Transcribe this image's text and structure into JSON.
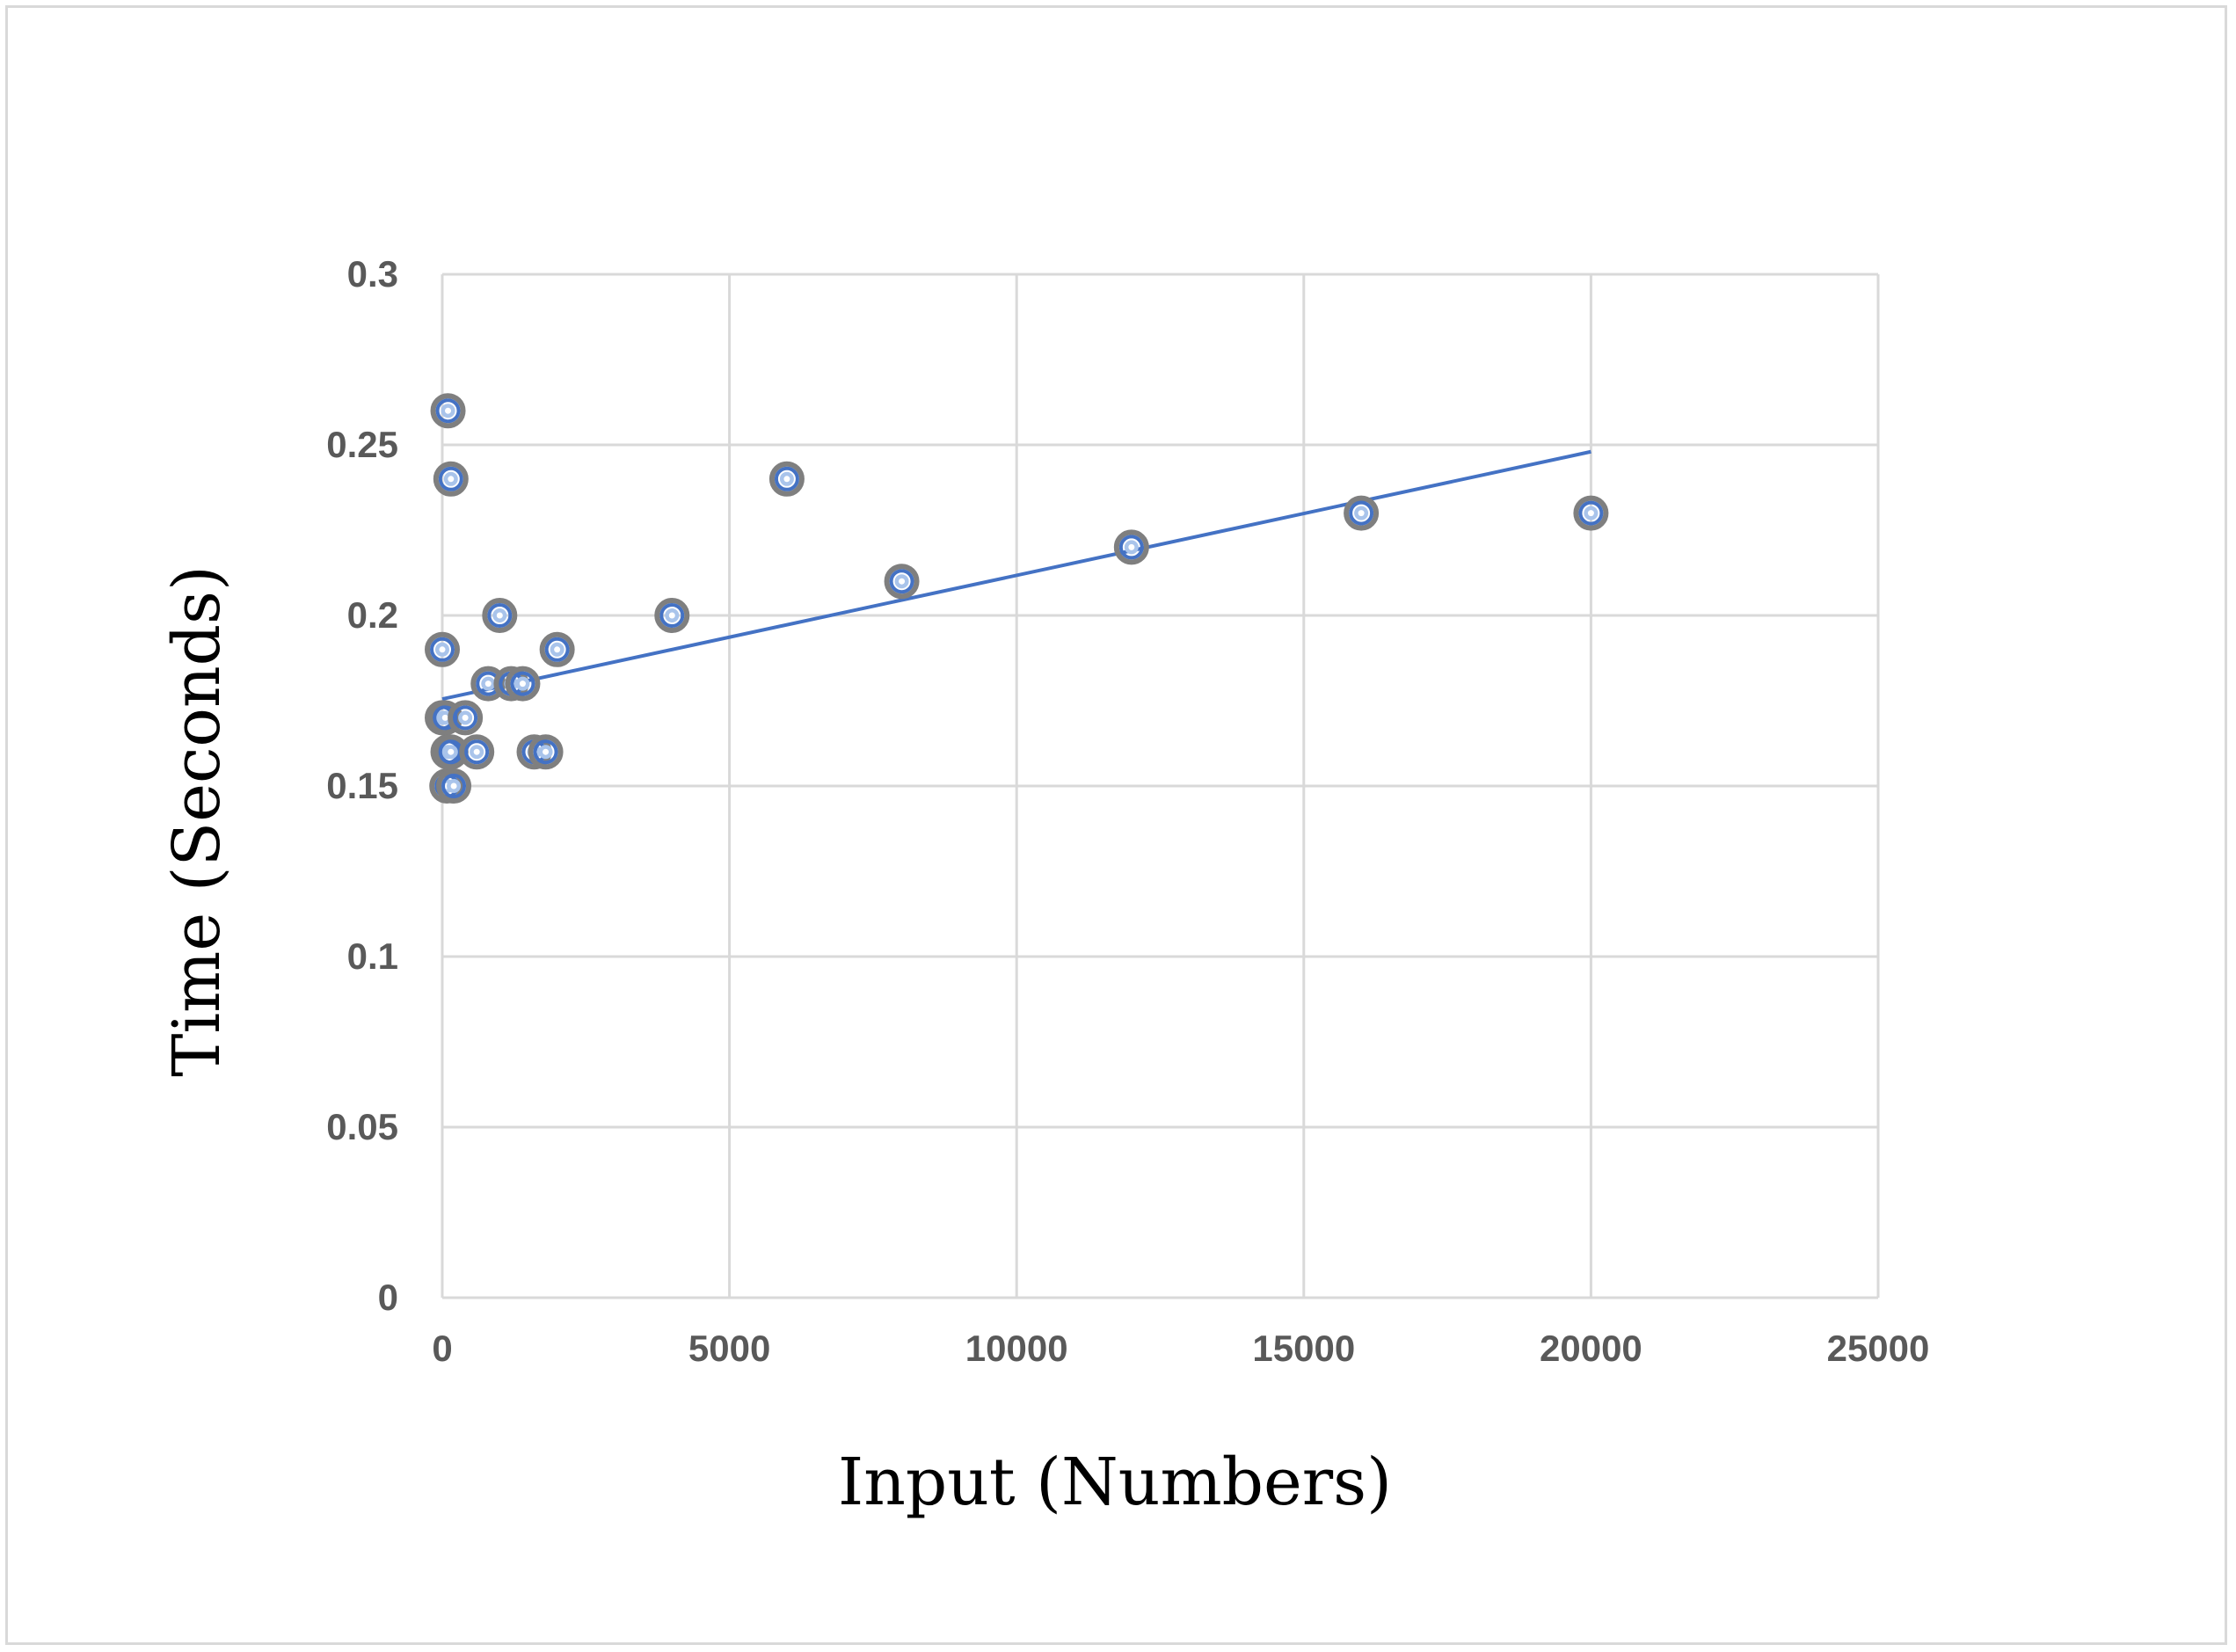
{
  "chart_data": {
    "type": "scatter",
    "title": "",
    "xlabel": "Input (Numbers)",
    "ylabel": "Time (Seconds)",
    "xlim": [
      0,
      25000
    ],
    "ylim": [
      0,
      0.3
    ],
    "x_ticks": [
      "0",
      "5000",
      "10000",
      "15000",
      "20000",
      "25000"
    ],
    "y_ticks": [
      "0",
      "0.05",
      "0.1",
      "0.15",
      "0.2",
      "0.25",
      "0.3"
    ],
    "grid": true,
    "legend": "none",
    "series": [
      {
        "points": [
          {
            "x": 0,
            "y": 0.19
          },
          {
            "x": 0,
            "y": 0.17
          },
          {
            "x": 50,
            "y": 0.17
          },
          {
            "x": 80,
            "y": 0.15
          },
          {
            "x": 100,
            "y": 0.26
          },
          {
            "x": 100,
            "y": 0.16
          },
          {
            "x": 150,
            "y": 0.16
          },
          {
            "x": 150,
            "y": 0.24
          },
          {
            "x": 200,
            "y": 0.15
          },
          {
            "x": 400,
            "y": 0.17
          },
          {
            "x": 600,
            "y": 0.16
          },
          {
            "x": 800,
            "y": 0.18
          },
          {
            "x": 1000,
            "y": 0.2
          },
          {
            "x": 1200,
            "y": 0.18
          },
          {
            "x": 1400,
            "y": 0.18
          },
          {
            "x": 1600,
            "y": 0.16
          },
          {
            "x": 1800,
            "y": 0.16
          },
          {
            "x": 2000,
            "y": 0.19
          },
          {
            "x": 4000,
            "y": 0.2
          },
          {
            "x": 6000,
            "y": 0.24
          },
          {
            "x": 8000,
            "y": 0.21
          },
          {
            "x": 12000,
            "y": 0.22
          },
          {
            "x": 16000,
            "y": 0.23
          },
          {
            "x": 20000,
            "y": 0.23
          }
        ],
        "marker_fill": "#a9c4eb",
        "marker_edge": "#4472c4",
        "marker_outline": "#7f7f7f"
      }
    ],
    "trendline": {
      "type": "linear",
      "start": {
        "x": 0,
        "y": 0.1755
      },
      "end": {
        "x": 20000,
        "y": 0.248
      },
      "color": "#4472c4"
    }
  }
}
